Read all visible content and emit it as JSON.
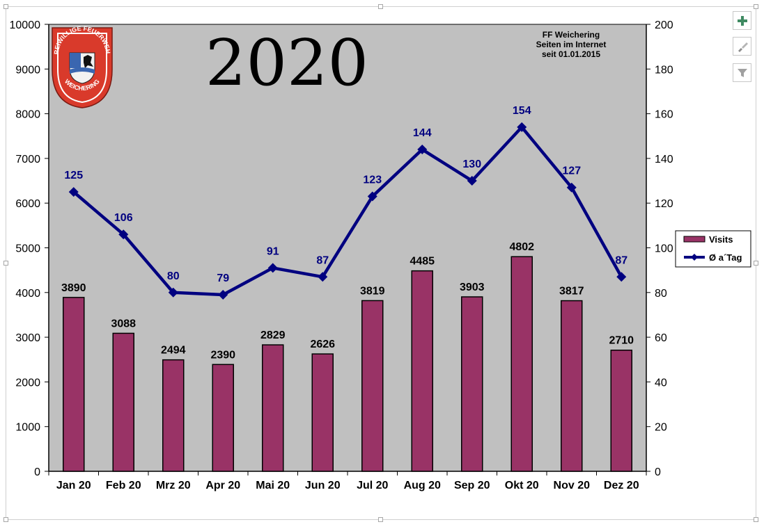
{
  "chart_data": {
    "type": "bar",
    "year_title": "2020",
    "annotation": [
      "FF Weichering",
      "Seiten im Internet",
      "seit 01.01.2015"
    ],
    "categories": [
      "Jan 20",
      "Feb 20",
      "Mrz 20",
      "Apr 20",
      "Mai 20",
      "Jun 20",
      "Jul 20",
      "Aug 20",
      "Sep 20",
      "Okt 20",
      "Nov 20",
      "Dez 20"
    ],
    "series": [
      {
        "name": "Visits",
        "type": "bar",
        "axis": "left",
        "color": "#993366",
        "values": [
          3890,
          3088,
          2494,
          2390,
          2829,
          2626,
          3819,
          4485,
          3903,
          4802,
          3817,
          2710
        ]
      },
      {
        "name": "Ø a´Tag",
        "type": "line",
        "axis": "right",
        "color": "#000080",
        "values": [
          125,
          106,
          80,
          79,
          91,
          87,
          123,
          144,
          130,
          154,
          127,
          87
        ]
      }
    ],
    "left_axis": {
      "min": 0,
      "max": 10000,
      "step": 1000
    },
    "right_axis": {
      "min": 0,
      "max": 200,
      "step": 20
    },
    "plot_background": "#c0c0c0",
    "grid": false,
    "legend_position": "right",
    "logo": {
      "top_text": "FREIWILLIGE FEUERWEHR",
      "bottom_text": "WEICHERING",
      "shield_color": "#d93a2b"
    }
  },
  "toolbar": {
    "add_icon": "plus-icon",
    "style_icon": "brush-icon",
    "filter_icon": "filter-icon"
  }
}
